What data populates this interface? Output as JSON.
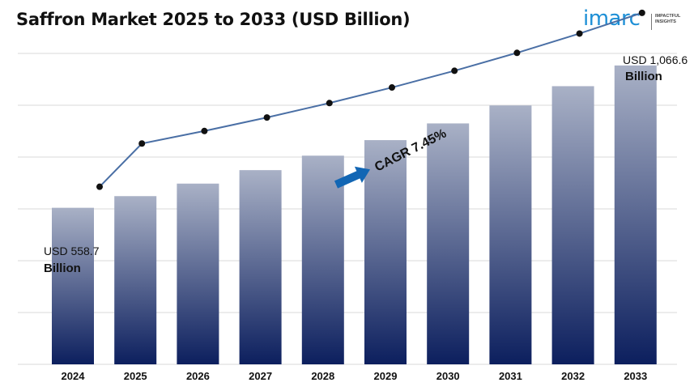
{
  "title": "Saffron Market 2025 to 2033 (USD Billion)",
  "logo": {
    "name": "imarc",
    "tagline": "IMPACTFUL INSIGHTS",
    "color": "#1d8fd6"
  },
  "chart_data": {
    "type": "bar",
    "title": "Saffron Market 2025 to 2033 (USD Billion)",
    "categories": [
      "2024",
      "2025",
      "2026",
      "2027",
      "2028",
      "2029",
      "2030",
      "2031",
      "2032",
      "2033"
    ],
    "series": [
      {
        "values": [
          558.7,
          600.3,
          645.0,
          693.1,
          744.7,
          800.2,
          859.8,
          923.8,
          992.7,
          1066.6
        ]
      }
    ],
    "ylim": [
      0,
      1150
    ],
    "grid": true,
    "trend_line": true,
    "annotations": {
      "first": {
        "line1": "USD 558.7",
        "line2": "Billion"
      },
      "last": {
        "line1": "USD 1,066.6",
        "line2": "Billion"
      },
      "cagr": "CAGR 7.45%"
    },
    "colors": {
      "bar_top": "#a9b1c6",
      "bar_bottom": "#0c1f5e",
      "line": "#4a6fa5",
      "arrow": "#1266b4",
      "grid": "#d9d9d9"
    }
  }
}
